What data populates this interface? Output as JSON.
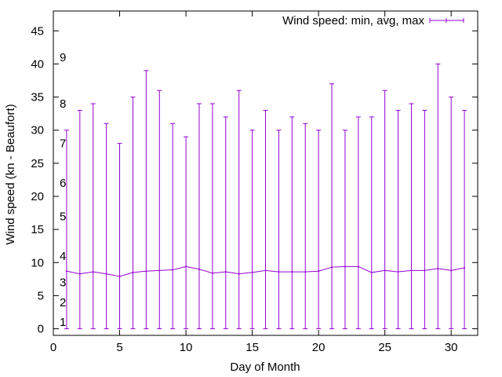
{
  "chart_data": {
    "type": "errorbar-line",
    "xlabel": "Day of Month",
    "ylabel": "Wind speed (kn - Beaufort)",
    "xlim": [
      0,
      32
    ],
    "ylim": [
      -1,
      48
    ],
    "x_ticks": [
      0,
      5,
      10,
      15,
      20,
      25,
      30
    ],
    "y_ticks": [
      0,
      5,
      10,
      15,
      20,
      25,
      30,
      35,
      40,
      45
    ],
    "grid": false,
    "legend_position": "top-right",
    "series_color": "#9400d3",
    "series": [
      {
        "name": "Wind speed: min, avg, max",
        "x": [
          1,
          2,
          3,
          4,
          5,
          6,
          7,
          8,
          9,
          10,
          11,
          12,
          13,
          14,
          15,
          16,
          17,
          18,
          19,
          20,
          21,
          22,
          23,
          24,
          25,
          26,
          27,
          28,
          29,
          30,
          31
        ],
        "min": [
          0,
          0,
          0,
          0,
          0,
          0,
          0,
          0,
          0,
          0,
          0,
          0,
          0,
          0,
          0,
          0,
          0,
          0,
          0,
          0,
          0,
          0,
          0,
          0,
          0,
          0,
          0,
          0,
          0,
          0,
          0
        ],
        "avg": [
          8.7,
          8.3,
          8.6,
          8.3,
          7.9,
          8.5,
          8.7,
          8.8,
          8.9,
          9.4,
          9.0,
          8.4,
          8.6,
          8.3,
          8.5,
          8.8,
          8.6,
          8.6,
          8.6,
          8.7,
          9.3,
          9.4,
          9.4,
          8.5,
          8.8,
          8.6,
          8.8,
          8.8,
          9.1,
          8.8,
          9.2
        ],
        "max": [
          30,
          33,
          34,
          31,
          28,
          35,
          39,
          36,
          31,
          29,
          34,
          34,
          32,
          36,
          30,
          33,
          30,
          32,
          31,
          30,
          37,
          30,
          32,
          32,
          36,
          33,
          34,
          33,
          40,
          35,
          33
        ]
      }
    ],
    "beaufort_labels": [
      {
        "label": "1",
        "y": 1
      },
      {
        "label": "2",
        "y": 4
      },
      {
        "label": "3",
        "y": 7
      },
      {
        "label": "4",
        "y": 11
      },
      {
        "label": "5",
        "y": 17
      },
      {
        "label": "6",
        "y": 22
      },
      {
        "label": "7",
        "y": 28
      },
      {
        "label": "8",
        "y": 34
      },
      {
        "label": "9",
        "y": 41
      }
    ]
  }
}
